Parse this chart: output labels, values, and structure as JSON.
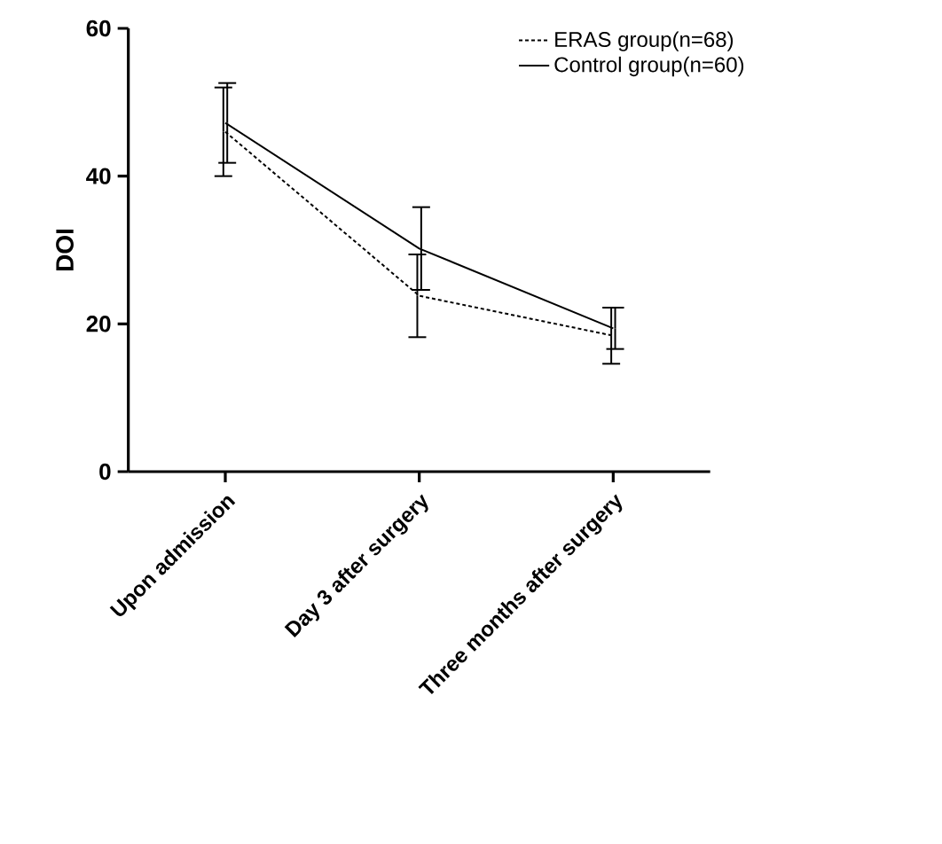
{
  "chart_data": {
    "type": "line",
    "ylabel": "DOI",
    "categories": [
      "Upon admission",
      "Day 3 after surgery",
      "Three  months after surgery"
    ],
    "series": [
      {
        "name": "ERAS  group(n=68)",
        "color": "#000000",
        "line_style": "dashed",
        "values": [
          46,
          23.8,
          18.4
        ],
        "errors": [
          6,
          5.6,
          3.8
        ]
      },
      {
        "name": "Control group(n=60)",
        "color": "#000000",
        "line_style": "solid",
        "values": [
          47.2,
          30.2,
          19.4
        ],
        "errors": [
          5.4,
          5.6,
          2.8
        ]
      }
    ],
    "ylim": [
      0,
      60
    ],
    "yticks": [
      0,
      20,
      40,
      60
    ],
    "legend": "top right",
    "marker": "none",
    "grid": false
  }
}
